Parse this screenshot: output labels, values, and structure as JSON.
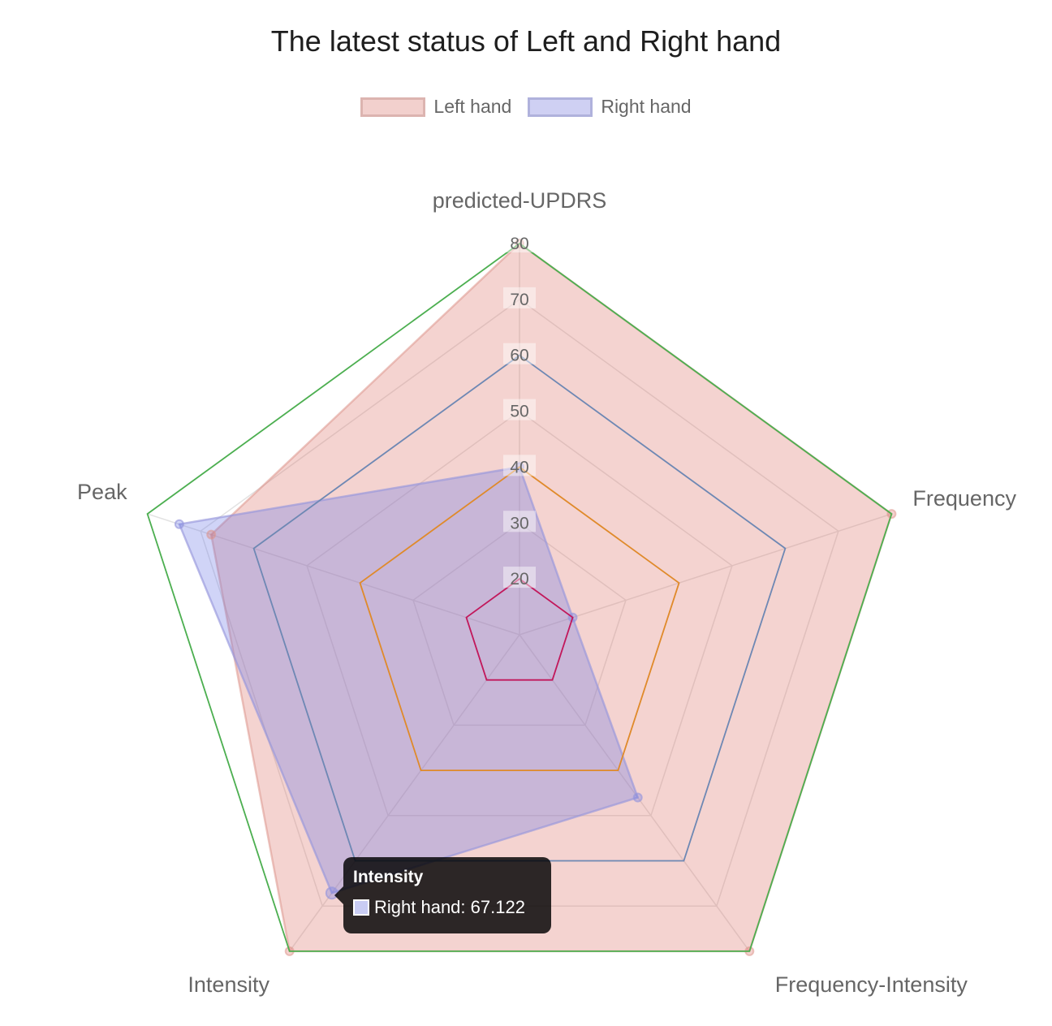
{
  "chart_data": {
    "type": "radar",
    "title": "The latest status of Left and Right hand",
    "labels": [
      "predicted-UPDRS",
      "Frequency",
      "Frequency-Intensity",
      "Intensity",
      "Peak"
    ],
    "r_range": [
      10,
      80
    ],
    "ticks": [
      20,
      30,
      40,
      50,
      60,
      70,
      80
    ],
    "grid": true,
    "legend_position": "top",
    "series": [
      {
        "name": "Left hand",
        "values": [
          80,
          80,
          80,
          80,
          68
        ],
        "fill": "rgba(220,110,100,0.30)",
        "border": "rgba(220,150,140,0.55)"
      },
      {
        "name": "Right hand",
        "values": [
          40,
          20,
          46,
          67.122,
          74
        ],
        "fill": "rgba(110,120,230,0.32)",
        "border": "rgba(150,150,220,0.65)"
      }
    ],
    "reference_levels": [
      {
        "value": 20,
        "color": "#c2185b"
      },
      {
        "value": 40,
        "color": "#e08a2a"
      },
      {
        "value": 60,
        "color": "#6e88b4"
      },
      {
        "value": 80,
        "color": "#4caf50"
      }
    ],
    "tooltip": {
      "title": "Intensity",
      "series": "Right hand",
      "value": "67.122",
      "text": "Right hand: 67.122",
      "swatch_color": "#c9ccf3"
    }
  },
  "legend": {
    "items": [
      {
        "label": "Left hand",
        "fill": "#f2d0cd",
        "border": "#dcb4b0"
      },
      {
        "label": "Right hand",
        "fill": "#cfd0f3",
        "border": "#b0b2dc"
      }
    ]
  },
  "colors": {
    "grid": "#e2e2e2",
    "label": "#666666",
    "title": "#1e1e1e"
  }
}
